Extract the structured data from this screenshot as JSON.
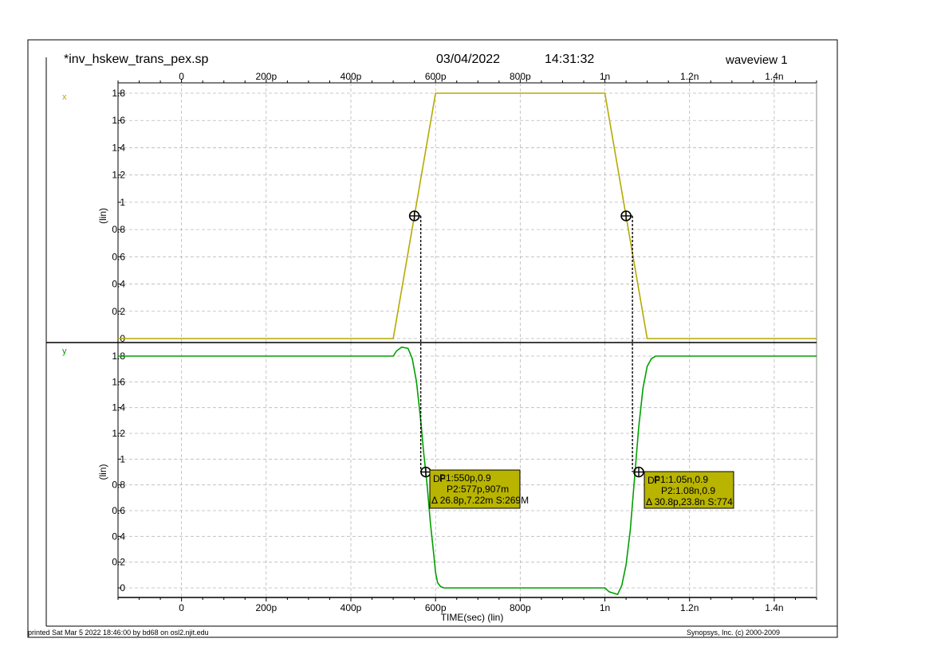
{
  "header": {
    "filename": "*inv_hskew_trans_pex.sp",
    "date": "03/04/2022",
    "time": "14:31:32",
    "window": "waveview 1"
  },
  "footer": {
    "printed": "printed Sat Mar  5 2022 18:46:00 by bd68 on osl2.njit.edu",
    "copyright": "Synopsys, Inc. (c) 2000-2009"
  },
  "chart_data": {
    "type": "line",
    "xlabel": "TIME(sec) (lin)",
    "xlim": [
      -1.5e-10,
      1.5e-09
    ],
    "x_ticks": [
      {
        "value": 0,
        "label": "0"
      },
      {
        "value": 2e-10,
        "label": "200p"
      },
      {
        "value": 4e-10,
        "label": "400p"
      },
      {
        "value": 6e-10,
        "label": "600p"
      },
      {
        "value": 8e-10,
        "label": "800p"
      },
      {
        "value": 1e-09,
        "label": "1n"
      },
      {
        "value": 1.2e-09,
        "label": "1.2n"
      },
      {
        "value": 1.4e-09,
        "label": "1.4n"
      }
    ],
    "grid": true,
    "panels": [
      {
        "signal": "x",
        "ylabel": "(lin)",
        "ylim": [
          0,
          1.8
        ],
        "y_ticks": [
          "0",
          "0.2",
          "0.4",
          "0.6",
          "0.8",
          "1",
          "1.2",
          "1.4",
          "1.6",
          "1.8"
        ],
        "color": "#b5aa00",
        "x": [
          -1.5e-10,
          5e-10,
          6e-10,
          1e-09,
          1.1e-09,
          1.5e-09
        ],
        "y": [
          0,
          0,
          1.8,
          1.8,
          0,
          0
        ],
        "markers": [
          {
            "x": 5.5e-10,
            "y": 0.9
          },
          {
            "x": 1.05e-09,
            "y": 0.9
          }
        ]
      },
      {
        "signal": "y",
        "ylabel": "(lin)",
        "ylim": [
          0,
          1.8
        ],
        "y_ticks": [
          "0",
          "0.2",
          "0.4",
          "0.6",
          "0.8",
          "1",
          "1.2",
          "1.4",
          "1.6",
          "1.8"
        ],
        "color": "#00a000",
        "x": [
          -1.5e-10,
          5e-10,
          5.08e-10,
          5.2e-10,
          5.35e-10,
          5.45e-10,
          5.55e-10,
          5.65e-10,
          5.72e-10,
          5.8e-10,
          5.88e-10,
          5.96e-10,
          6e-10,
          6.05e-10,
          6.12e-10,
          6.2e-10,
          6.4e-10,
          1e-09,
          1.01e-09,
          1.03e-09,
          1.04e-09,
          1.05e-09,
          1.06e-09,
          1.07e-09,
          1.08e-09,
          1.09e-09,
          1.1e-09,
          1.11e-09,
          1.12e-09,
          1.14e-09,
          1.5e-09
        ],
        "y": [
          1.8,
          1.8,
          1.84,
          1.87,
          1.86,
          1.78,
          1.6,
          1.3,
          1.05,
          0.8,
          0.5,
          0.25,
          0.12,
          0.04,
          0.01,
          0,
          0,
          0,
          -0.03,
          -0.05,
          0.02,
          0.18,
          0.45,
          0.85,
          1.25,
          1.55,
          1.72,
          1.78,
          1.8,
          1.8,
          1.8
        ],
        "markers": [
          {
            "x": 5.77e-10,
            "y": 0.9
          },
          {
            "x": 1.08e-09,
            "y": 0.9
          }
        ]
      }
    ],
    "annotations": [
      {
        "title": "DF",
        "p1": "P1:550p,0.9",
        "p2": "P2:577p,907m",
        "delta": "Δ 26.8p,7.22m S:269M",
        "from": {
          "x": 5.5e-10,
          "y": 0.9
        },
        "to": {
          "x": 5.77e-10,
          "y": 0.9
        }
      },
      {
        "title": "DF",
        "p1": "P1:1.05n,0.9",
        "p2": "P2:1.08n,0.9",
        "delta": "Δ 30.8p,23.8n S:774",
        "from": {
          "x": 1.05e-09,
          "y": 0.9
        },
        "to": {
          "x": 1.08e-09,
          "y": 0.9
        }
      }
    ]
  }
}
